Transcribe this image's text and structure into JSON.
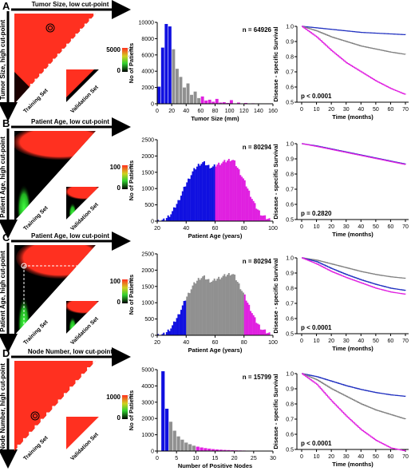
{
  "chart_data": [
    {
      "panel": "A",
      "type": "heatmap",
      "title": "Tumor Size, low cut-point",
      "ylabel": "Tumor Size, high cut-point",
      "training_label": "Training Set",
      "validation_label": "Validation Set",
      "colorbar": {
        "max_label": "5000",
        "min_label": "0",
        "symbol": "χ²"
      },
      "colors": {
        "high": "#ff3020",
        "low": "#000000",
        "green": "#30d030"
      }
    },
    {
      "panel": "A",
      "type": "bar",
      "xlabel": "Tumor Size (mm)",
      "ylabel": "No of Patients",
      "n_label": "n = 64926",
      "xlim": [
        0,
        160
      ],
      "ylim": [
        0,
        10000
      ],
      "xticks": [
        "0",
        "20",
        "40",
        "60",
        "80",
        "100",
        "120",
        "140",
        "160"
      ],
      "yticks": [
        "0",
        "2000",
        "4000",
        "6000",
        "8000",
        "10000"
      ],
      "bin_width": 5,
      "bins": [
        {
          "x": 2.5,
          "y": 2100,
          "g": "low"
        },
        {
          "x": 7.5,
          "y": 6900,
          "g": "low"
        },
        {
          "x": 12.5,
          "y": 9800,
          "g": "low"
        },
        {
          "x": 17.5,
          "y": 9500,
          "g": "low"
        },
        {
          "x": 22.5,
          "y": 6700,
          "g": "mid"
        },
        {
          "x": 27.5,
          "y": 4300,
          "g": "mid"
        },
        {
          "x": 32.5,
          "y": 3300,
          "g": "mid"
        },
        {
          "x": 37.5,
          "y": 2000,
          "g": "mid"
        },
        {
          "x": 42.5,
          "y": 2500,
          "g": "mid"
        },
        {
          "x": 47.5,
          "y": 1100,
          "g": "mid"
        },
        {
          "x": 52.5,
          "y": 1500,
          "g": "mid"
        },
        {
          "x": 57.5,
          "y": 700,
          "g": "mid"
        },
        {
          "x": 62.5,
          "y": 900,
          "g": "high"
        },
        {
          "x": 67.5,
          "y": 400,
          "g": "high"
        },
        {
          "x": 72.5,
          "y": 500,
          "g": "high"
        },
        {
          "x": 77.5,
          "y": 250,
          "g": "high"
        },
        {
          "x": 82.5,
          "y": 600,
          "g": "high"
        },
        {
          "x": 87.5,
          "y": 150,
          "g": "high"
        },
        {
          "x": 92.5,
          "y": 200,
          "g": "high"
        },
        {
          "x": 97.5,
          "y": 100,
          "g": "high"
        },
        {
          "x": 102.5,
          "y": 450,
          "g": "high"
        },
        {
          "x": 112.5,
          "y": 150,
          "g": "high"
        },
        {
          "x": 122.5,
          "y": 100,
          "g": "high"
        },
        {
          "x": 132.5,
          "y": 60,
          "g": "high"
        },
        {
          "x": 152.5,
          "y": 50,
          "g": "high"
        }
      ],
      "group_colors": {
        "low": "#1010e0",
        "mid": "#909090",
        "high": "#e020e0"
      }
    },
    {
      "panel": "A",
      "type": "line",
      "xlabel": "Time (months)",
      "ylabel": "Disease - specific Survival",
      "p_label": "p < 0.0001",
      "xlim": [
        0,
        70
      ],
      "ylim": [
        0.5,
        1.0
      ],
      "xticks": [
        "0",
        "10",
        "20",
        "30",
        "40",
        "50",
        "60",
        "70"
      ],
      "yticks": [
        "0.5",
        "0.6",
        "0.7",
        "0.8",
        "0.9",
        "1.0"
      ],
      "series": [
        {
          "color": "#2030c0",
          "x": [
            0,
            10,
            20,
            30,
            40,
            50,
            60,
            70
          ],
          "y": [
            1.0,
            0.99,
            0.98,
            0.97,
            0.96,
            0.955,
            0.95,
            0.945
          ]
        },
        {
          "color": "#808080",
          "x": [
            0,
            10,
            20,
            30,
            40,
            50,
            60,
            70
          ],
          "y": [
            1.0,
            0.97,
            0.93,
            0.9,
            0.87,
            0.85,
            0.83,
            0.815
          ]
        },
        {
          "color": "#e020e0",
          "x": [
            0,
            10,
            20,
            30,
            40,
            50,
            60,
            70
          ],
          "y": [
            1.0,
            0.93,
            0.84,
            0.76,
            0.7,
            0.64,
            0.59,
            0.55
          ]
        }
      ]
    },
    {
      "panel": "B",
      "type": "heatmap",
      "title": "Patient Age, low cut-point",
      "ylabel": "Patient Age, high cut-point",
      "training_label": "Training Set",
      "validation_label": "Validation Set",
      "colorbar": {
        "max_label": "100",
        "min_label": "0",
        "symbol": "χ²"
      },
      "colors": {
        "high": "#ff3020",
        "low": "#000000",
        "green": "#30d030"
      }
    },
    {
      "panel": "B",
      "type": "bar",
      "xlabel": "Patient Age (years)",
      "ylabel": "No of Patients",
      "n_label": "n = 80294",
      "xlim": [
        20,
        100
      ],
      "ylim": [
        0,
        2500
      ],
      "xticks": [
        "20",
        "40",
        "60",
        "80",
        "100"
      ],
      "yticks": [
        "0",
        "500",
        "1000",
        "1500",
        "2000",
        "2500"
      ],
      "bin_width": 1,
      "curve": [
        [
          20,
          0
        ],
        [
          25,
          30
        ],
        [
          30,
          250
        ],
        [
          35,
          650
        ],
        [
          40,
          1150
        ],
        [
          45,
          1550
        ],
        [
          49,
          1750
        ],
        [
          52,
          1800
        ],
        [
          55,
          1700
        ],
        [
          58,
          1650
        ],
        [
          60,
          1700
        ],
        [
          62,
          1750
        ],
        [
          65,
          1800
        ],
        [
          68,
          1850
        ],
        [
          71,
          1900
        ],
        [
          73,
          1850
        ],
        [
          76,
          1600
        ],
        [
          80,
          1250
        ],
        [
          84,
          850
        ],
        [
          88,
          450
        ],
        [
          92,
          200
        ],
        [
          96,
          80
        ],
        [
          100,
          10
        ]
      ],
      "split": 60,
      "group_colors": {
        "low": "#1010e0",
        "high": "#e020e0"
      }
    },
    {
      "panel": "B",
      "type": "line",
      "xlabel": "Time (months)",
      "ylabel": "Disease - specific Survival",
      "p_label": "p = 0.2820",
      "xlim": [
        0,
        70
      ],
      "ylim": [
        0.5,
        1.0
      ],
      "xticks": [
        "0",
        "10",
        "20",
        "30",
        "40",
        "50",
        "60",
        "70"
      ],
      "yticks": [
        "0.5",
        "0.6",
        "0.7",
        "0.8",
        "0.9",
        "1.0"
      ],
      "series": [
        {
          "color": "#2030c0",
          "x": [
            0,
            10,
            20,
            30,
            40,
            50,
            60,
            70
          ],
          "y": [
            1.0,
            0.985,
            0.965,
            0.945,
            0.925,
            0.905,
            0.885,
            0.865
          ]
        },
        {
          "color": "#e020e0",
          "x": [
            0,
            10,
            20,
            30,
            40,
            50,
            60,
            70
          ],
          "y": [
            1.0,
            0.982,
            0.962,
            0.942,
            0.922,
            0.902,
            0.882,
            0.862
          ]
        }
      ]
    },
    {
      "panel": "C",
      "type": "heatmap",
      "title": "Patient Age, low cut-point",
      "ylabel": "Patient Age, high cut-point",
      "training_label": "Training Set",
      "validation_label": "Validation Set",
      "colorbar": {
        "max_label": "100",
        "min_label": "0",
        "symbol": "χ²"
      },
      "colors": {
        "high": "#ff3020",
        "low": "#000000",
        "green": "#30d030"
      }
    },
    {
      "panel": "C",
      "type": "bar",
      "xlabel": "Patient Age (years)",
      "ylabel": "No of Patients",
      "n_label": "n = 80294",
      "xlim": [
        20,
        100
      ],
      "ylim": [
        0,
        2500
      ],
      "xticks": [
        "20",
        "40",
        "60",
        "80",
        "100"
      ],
      "yticks": [
        "0",
        "500",
        "1000",
        "1500",
        "2000",
        "2500"
      ],
      "bin_width": 1,
      "curve": [
        [
          20,
          0
        ],
        [
          25,
          30
        ],
        [
          30,
          250
        ],
        [
          35,
          650
        ],
        [
          40,
          1150
        ],
        [
          45,
          1550
        ],
        [
          49,
          1750
        ],
        [
          52,
          1800
        ],
        [
          55,
          1700
        ],
        [
          58,
          1650
        ],
        [
          60,
          1700
        ],
        [
          62,
          1750
        ],
        [
          65,
          1800
        ],
        [
          68,
          1850
        ],
        [
          71,
          1900
        ],
        [
          73,
          1850
        ],
        [
          76,
          1600
        ],
        [
          80,
          1250
        ],
        [
          84,
          850
        ],
        [
          88,
          450
        ],
        [
          92,
          200
        ],
        [
          96,
          80
        ],
        [
          100,
          10
        ]
      ],
      "splits": [
        40,
        80
      ],
      "group_colors": {
        "low": "#1010e0",
        "mid": "#909090",
        "high": "#e020e0"
      }
    },
    {
      "panel": "C",
      "type": "line",
      "xlabel": "Time (months)",
      "ylabel": "Disease - specific Survival",
      "p_label": "p < 0.0001",
      "xlim": [
        0,
        70
      ],
      "ylim": [
        0.5,
        1.0
      ],
      "xticks": [
        "0",
        "10",
        "20",
        "30",
        "40",
        "50",
        "60",
        "70"
      ],
      "yticks": [
        "0.5",
        "0.6",
        "0.7",
        "0.8",
        "0.9",
        "1.0"
      ],
      "series": [
        {
          "color": "#808080",
          "x": [
            0,
            10,
            20,
            30,
            40,
            50,
            60,
            70
          ],
          "y": [
            1.0,
            0.985,
            0.96,
            0.935,
            0.91,
            0.89,
            0.875,
            0.865
          ]
        },
        {
          "color": "#2030c0",
          "x": [
            0,
            10,
            20,
            30,
            40,
            50,
            60,
            70
          ],
          "y": [
            1.0,
            0.975,
            0.93,
            0.89,
            0.855,
            0.825,
            0.8,
            0.785
          ]
        },
        {
          "color": "#e020e0",
          "x": [
            0,
            10,
            20,
            30,
            40,
            50,
            60,
            70
          ],
          "y": [
            1.0,
            0.96,
            0.91,
            0.87,
            0.835,
            0.8,
            0.775,
            0.76
          ]
        }
      ]
    },
    {
      "panel": "D",
      "type": "heatmap",
      "title": "Node Number, low cut-point",
      "ylabel": "Node Number, high cut-point",
      "training_label": "Training Set",
      "validation_label": "Validation Set",
      "colorbar": {
        "max_label": "1000",
        "min_label": "0",
        "symbol": "χ²"
      },
      "colors": {
        "high": "#ff3020",
        "low": "#000000",
        "green": "#30d030"
      }
    },
    {
      "panel": "D",
      "type": "bar",
      "xlabel": "Number of Positive Nodes",
      "ylabel": "No of Patients",
      "n_label": "n = 15799",
      "xlim": [
        0,
        30
      ],
      "ylim": [
        0,
        5000
      ],
      "xticks": [
        "0",
        "5",
        "10",
        "15",
        "20",
        "25",
        "30"
      ],
      "yticks": [
        "0",
        "1000",
        "2000",
        "3000",
        "4000",
        "5000"
      ],
      "bin_width": 1,
      "bins": [
        {
          "x": 1.5,
          "y": 4900,
          "g": "low"
        },
        {
          "x": 2.5,
          "y": 2600,
          "g": "low"
        },
        {
          "x": 3.5,
          "y": 1800,
          "g": "mid"
        },
        {
          "x": 4.5,
          "y": 1250,
          "g": "mid"
        },
        {
          "x": 5.5,
          "y": 900,
          "g": "mid"
        },
        {
          "x": 6.5,
          "y": 700,
          "g": "mid"
        },
        {
          "x": 7.5,
          "y": 520,
          "g": "mid"
        },
        {
          "x": 8.5,
          "y": 420,
          "g": "mid"
        },
        {
          "x": 9.5,
          "y": 330,
          "g": "mid"
        },
        {
          "x": 10.5,
          "y": 270,
          "g": "high"
        },
        {
          "x": 11.5,
          "y": 220,
          "g": "high"
        },
        {
          "x": 12.5,
          "y": 180,
          "g": "high"
        },
        {
          "x": 13.5,
          "y": 150,
          "g": "high"
        },
        {
          "x": 14.5,
          "y": 120,
          "g": "high"
        },
        {
          "x": 15.5,
          "y": 100,
          "g": "high"
        },
        {
          "x": 16.5,
          "y": 85,
          "g": "high"
        },
        {
          "x": 17.5,
          "y": 70,
          "g": "high"
        },
        {
          "x": 18.5,
          "y": 60,
          "g": "high"
        },
        {
          "x": 19.5,
          "y": 50,
          "g": "high"
        },
        {
          "x": 20.5,
          "y": 40,
          "g": "high"
        },
        {
          "x": 21.5,
          "y": 35,
          "g": "high"
        },
        {
          "x": 22.5,
          "y": 30,
          "g": "high"
        },
        {
          "x": 23.5,
          "y": 25,
          "g": "high"
        },
        {
          "x": 24.5,
          "y": 20,
          "g": "high"
        },
        {
          "x": 25.5,
          "y": 15,
          "g": "high"
        },
        {
          "x": 26.5,
          "y": 12,
          "g": "high"
        },
        {
          "x": 27.5,
          "y": 10,
          "g": "high"
        },
        {
          "x": 28.5,
          "y": 8,
          "g": "high"
        },
        {
          "x": 29.5,
          "y": 6,
          "g": "high"
        }
      ],
      "group_colors": {
        "low": "#1010e0",
        "mid": "#909090",
        "high": "#e020e0"
      }
    },
    {
      "panel": "D",
      "type": "line",
      "xlabel": "Time (months)",
      "ylabel": "Disease - specific Survival",
      "p_label": "p < 0.0001",
      "xlim": [
        0,
        70
      ],
      "ylim": [
        0.5,
        1.0
      ],
      "xticks": [
        "0",
        "10",
        "20",
        "30",
        "40",
        "50",
        "60",
        "70"
      ],
      "yticks": [
        "0.5",
        "0.6",
        "0.7",
        "0.8",
        "0.9",
        "1.0"
      ],
      "series": [
        {
          "color": "#2030c0",
          "x": [
            0,
            10,
            20,
            30,
            40,
            50,
            60,
            70
          ],
          "y": [
            1.0,
            0.98,
            0.95,
            0.92,
            0.895,
            0.875,
            0.86,
            0.85
          ]
        },
        {
          "color": "#808080",
          "x": [
            0,
            10,
            20,
            30,
            40,
            50,
            60,
            70
          ],
          "y": [
            1.0,
            0.96,
            0.9,
            0.85,
            0.8,
            0.76,
            0.73,
            0.7
          ]
        },
        {
          "color": "#e020e0",
          "x": [
            0,
            10,
            20,
            30,
            40,
            50,
            60,
            70
          ],
          "y": [
            1.0,
            0.93,
            0.82,
            0.72,
            0.63,
            0.56,
            0.51,
            0.49
          ]
        }
      ]
    }
  ],
  "panel_labels": [
    "A",
    "B",
    "C",
    "D"
  ]
}
